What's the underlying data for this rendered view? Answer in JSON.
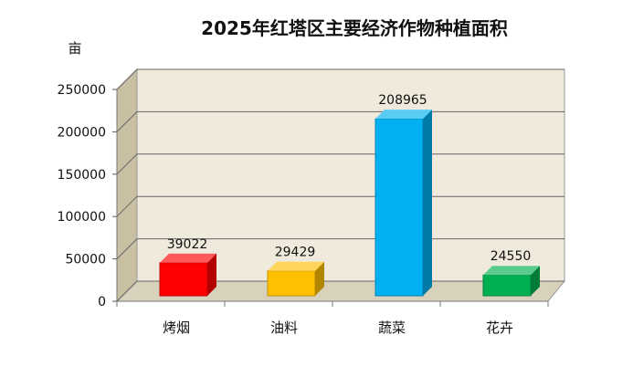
{
  "chart_data": {
    "type": "bar",
    "title": "2025年红塔区主要经济作物种植面积",
    "ylabel": "亩",
    "xlabel": "",
    "categories": [
      "烤烟",
      "油料",
      "蔬菜",
      "花卉"
    ],
    "values": [
      39022,
      29429,
      208965,
      24550
    ],
    "data_labels": [
      "39022",
      "29429",
      "208965",
      "24550"
    ],
    "ylim": [
      0,
      250000
    ],
    "yticks": [
      0,
      50000,
      100000,
      150000,
      200000,
      250000
    ],
    "ytick_labels": [
      "0",
      "50000",
      "100000",
      "150000",
      "200000",
      "250000"
    ],
    "grid": true,
    "legend": "none",
    "style": "3d",
    "colors": [
      "#ff0000",
      "#ffc000",
      "#00b0f0",
      "#00b050"
    ],
    "wall_color": "#efeadb"
  }
}
